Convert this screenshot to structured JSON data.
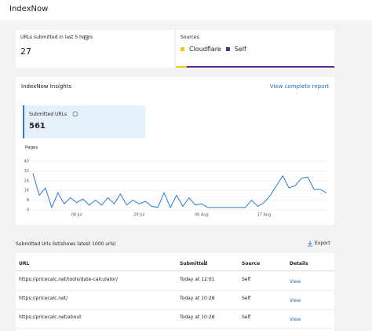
{
  "header": {
    "title": "IndexNow"
  },
  "summary": {
    "label": "URLs submitted in last 5 hours",
    "value": 27
  },
  "sources": {
    "title": "Sources",
    "items": [
      {
        "label": "Cloudflare",
        "color": "#f2c811"
      },
      {
        "label": "Self",
        "color": "#5c2d91"
      }
    ]
  },
  "insights": {
    "title": "IndexNow Insights",
    "link": "View complete report",
    "metric": {
      "label": "Submitted URLs",
      "value": 561
    }
  },
  "chart_data": {
    "type": "line",
    "ylabel": "Pages",
    "color": "#2b7cd3",
    "grid": true,
    "categories": [
      null,
      null,
      null,
      null,
      null,
      null,
      null,
      "08 Jul",
      null,
      null,
      null,
      null,
      null,
      null,
      null,
      null,
      null,
      "29 Jul",
      null,
      null,
      null,
      null,
      null,
      null,
      null,
      null,
      null,
      "06 Aug",
      null,
      null,
      null,
      null,
      null,
      null,
      null,
      null,
      null,
      "17 Aug",
      null,
      null,
      null,
      null,
      null,
      null,
      null,
      null,
      null,
      null
    ],
    "values": [
      30,
      12,
      18,
      2,
      14,
      5,
      10,
      6,
      9,
      4,
      8,
      4,
      10,
      5,
      13,
      4,
      8,
      5,
      7,
      3,
      2,
      14,
      2,
      12,
      3,
      10,
      4,
      5,
      2,
      2,
      2,
      2,
      2,
      2,
      2,
      8,
      3,
      6,
      12,
      20,
      28,
      18,
      20,
      26,
      27,
      17,
      17,
      14
    ],
    "ylim": [
      0,
      40
    ],
    "yticks": [
      0,
      8,
      16,
      24,
      32,
      40
    ]
  },
  "table": {
    "title": "Submitted Urls list(shows latest 1000 urls)",
    "export": "Export",
    "columns": [
      "URL",
      "Submitted",
      "Source",
      "Details"
    ],
    "rows": [
      [
        "https://pricecalc.net/tools/date-calculator/",
        "Today at 12:01",
        "Self",
        "View"
      ],
      [
        "https://pricecalc.net/",
        "Today at 10:28",
        "Self",
        "View"
      ],
      [
        "https://pricecalc.net/about",
        "Today at 10:28",
        "Self",
        "View"
      ]
    ]
  }
}
